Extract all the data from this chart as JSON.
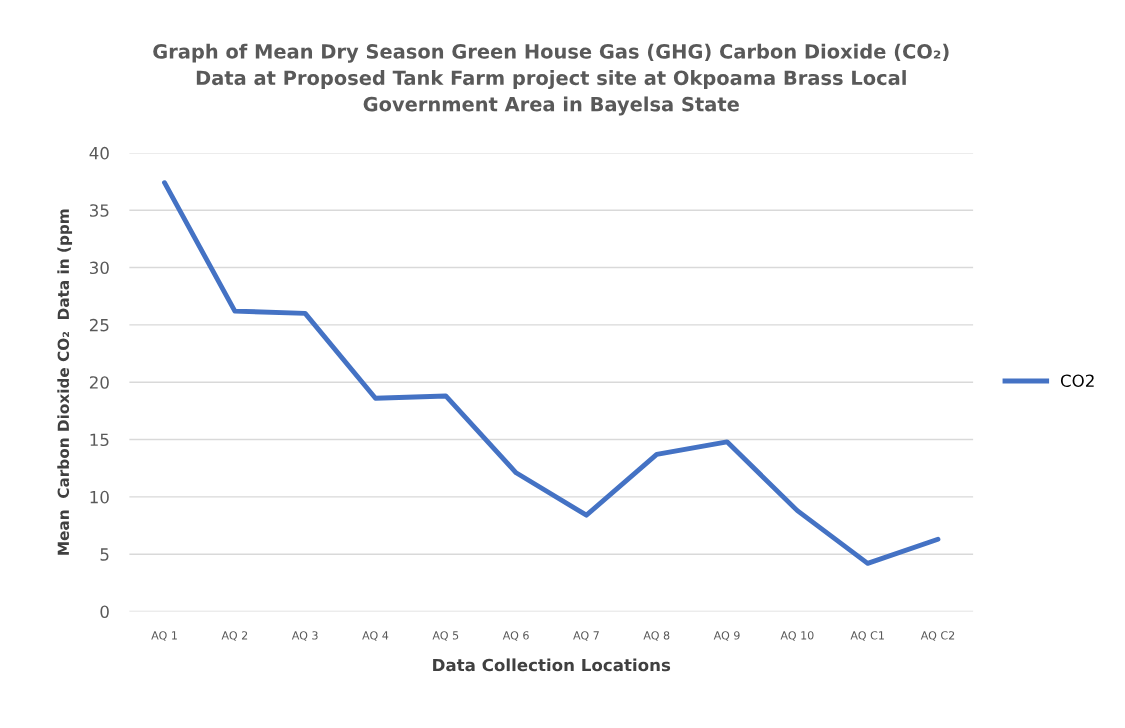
{
  "chart_data": {
    "type": "line",
    "title": "Graph of Mean Dry Season Green House Gas (GHG) Carbon Dioxide (CO₂)\nData at Proposed Tank Farm project site at Okpoama Brass Local\nGovernment Area in Bayelsa State",
    "xlabel": "Data Collection Locations",
    "ylabel": "Mean  Carbon Dioxide CO₂  Data in (ppm",
    "categories": [
      "AQ 1",
      "AQ 2",
      "AQ 3",
      "AQ 4",
      "AQ 5",
      "AQ 6",
      "AQ 7",
      "AQ 8",
      "AQ 9",
      "AQ 10",
      "AQ C1",
      "AQ C2"
    ],
    "series": [
      {
        "name": "CO2",
        "color": "#4472c4",
        "values": [
          37.4,
          26.2,
          26.0,
          18.6,
          18.8,
          12.1,
          8.4,
          13.7,
          14.8,
          8.8,
          4.2,
          6.3
        ]
      }
    ],
    "ylim": [
      0,
      40
    ],
    "yticks": [
      0,
      5,
      10,
      15,
      20,
      25,
      30,
      35,
      40
    ],
    "grid": "y",
    "legend": "right",
    "marker": "none",
    "line_style": "solid"
  }
}
